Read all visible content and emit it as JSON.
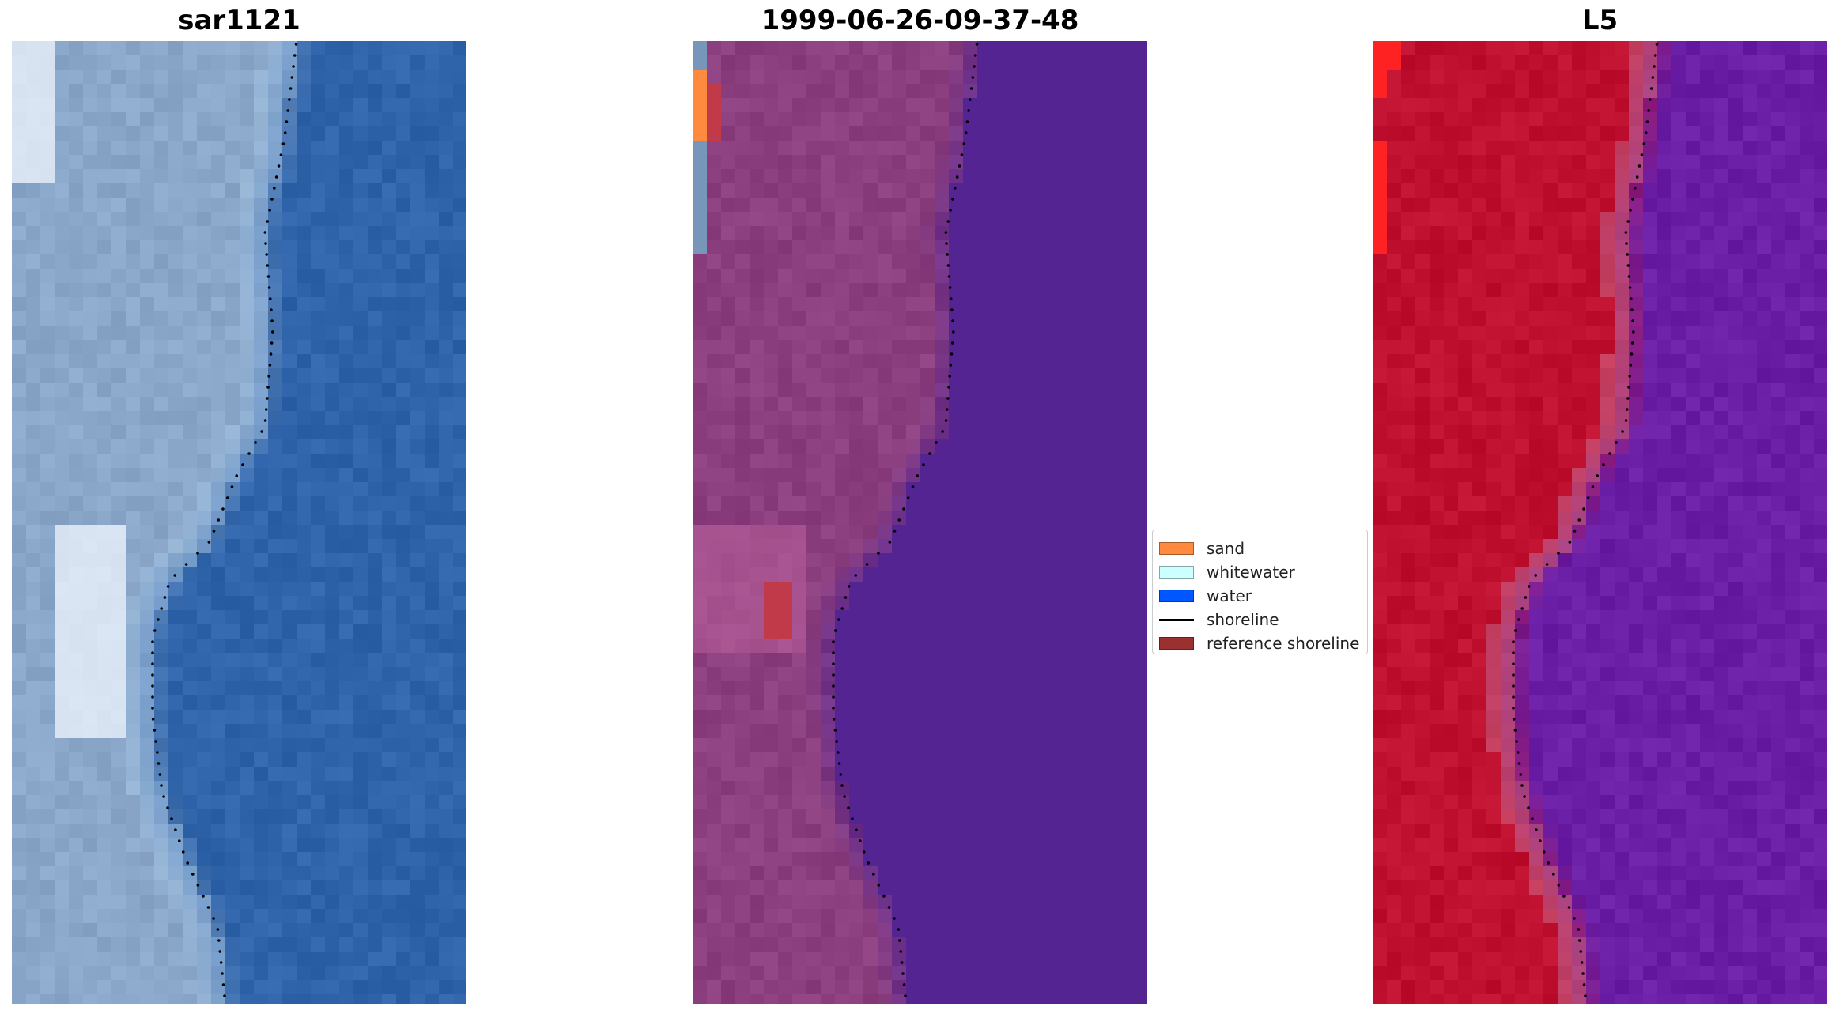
{
  "panels": [
    {
      "title": "sar1121",
      "style": "true-color"
    },
    {
      "title": "1999-06-26-09-37-48",
      "style": "classified"
    },
    {
      "title": "L5",
      "style": "index"
    }
  ],
  "legend": {
    "items": [
      {
        "label": "sand",
        "color": "#fd8a3e",
        "kind": "patch"
      },
      {
        "label": "whitewater",
        "color": "#ccffff",
        "kind": "patch"
      },
      {
        "label": "water",
        "color": "#0057ff",
        "kind": "patch"
      },
      {
        "label": "shoreline",
        "color": "#000000",
        "kind": "line"
      },
      {
        "label": "reference shoreline",
        "color": "#9b3030",
        "kind": "patch"
      }
    ]
  },
  "colors": {
    "water_rgb": "#2f64aa",
    "land_rgb": "#8aa6c8",
    "foam_rgb": "#f2f8ff",
    "class_land": "#8c3f7e",
    "class_water": "#542493",
    "class_ref_shoreline": "#c03a4a",
    "index_land": "#c0102f",
    "index_water": "#6a1ea6",
    "index_bright": "#ff2222",
    "shoreline_dots": "#000000"
  }
}
